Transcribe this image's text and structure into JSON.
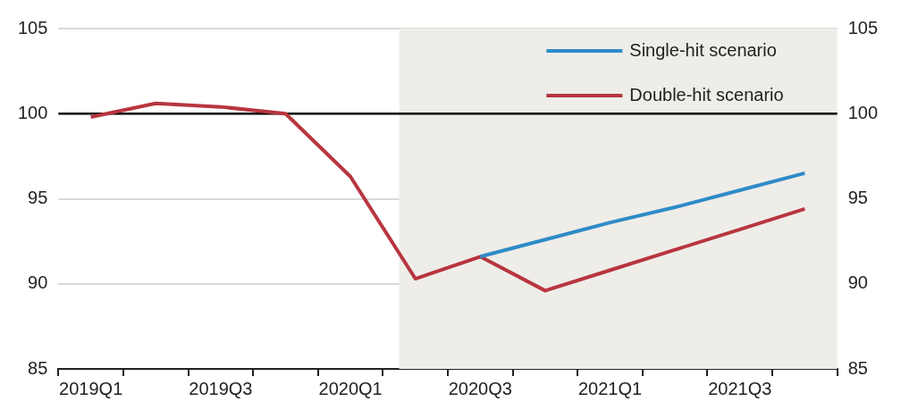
{
  "chart_data": {
    "type": "line",
    "categories": [
      "2019Q1",
      null,
      "2019Q3",
      null,
      "2020Q1",
      null,
      "2020Q3",
      null,
      "2021Q1",
      null,
      "2021Q3",
      null
    ],
    "series": [
      {
        "name": "Single-hit scenario",
        "color": "#2e8bc8",
        "values": [
          null,
          null,
          null,
          null,
          null,
          null,
          91.6,
          92.6,
          93.6,
          94.5,
          95.5,
          96.5
        ]
      },
      {
        "name": "Double-hit scenario",
        "color": "#b8353f",
        "values": [
          99.8,
          100.6,
          100.4,
          100.0,
          96.3,
          90.3,
          91.6,
          89.6,
          90.8,
          92.0,
          93.2,
          94.4
        ]
      }
    ],
    "ylim": [
      85,
      105
    ],
    "yticks": [
      85,
      90,
      95,
      100,
      105
    ],
    "y2lim": [
      85,
      105
    ],
    "y2ticks": [
      85,
      90,
      95,
      100,
      105
    ],
    "grid": "y",
    "legend": "top right",
    "marker": "none",
    "line_style": "solid",
    "ref_lines": [
      {
        "axis": "y",
        "value": 100,
        "color": "#000000"
      }
    ]
  }
}
